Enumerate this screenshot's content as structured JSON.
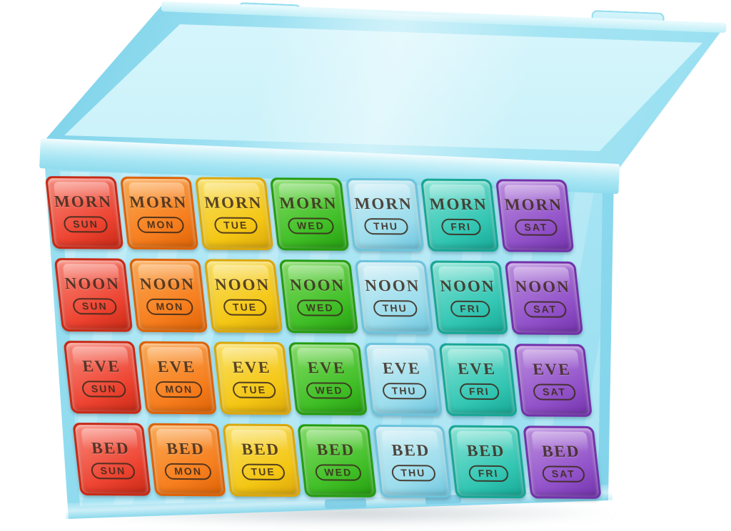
{
  "colors": {
    "background": "#ffffff",
    "caseLight": "#d6f4fb",
    "caseMid": "#b0e9f6",
    "caseEdge": "#8bdaee",
    "caseDeep": "#6fcce6",
    "ink": "#3c2a1d"
  },
  "grid": {
    "periods": [
      "MORN",
      "NOON",
      "EVE",
      "BED"
    ],
    "days": [
      {
        "label": "SUN",
        "base": "#ed4230",
        "light": "#f98a7c",
        "deep": "#c72a16"
      },
      {
        "label": "MON",
        "base": "#f67d1d",
        "light": "#fcab55",
        "deep": "#dd6306"
      },
      {
        "label": "TUE",
        "base": "#f4c614",
        "light": "#fae267",
        "deep": "#dba70a"
      },
      {
        "label": "WED",
        "base": "#3fbe26",
        "light": "#83dd66",
        "deep": "#259c10"
      },
      {
        "label": "THU",
        "base": "#9adcec",
        "light": "#cfeff6",
        "deep": "#6cc4dd"
      },
      {
        "label": "FRI",
        "base": "#31c5b2",
        "light": "#86e4d6",
        "deep": "#17a795"
      },
      {
        "label": "SAT",
        "base": "#9050c8",
        "light": "#bd90e0",
        "deep": "#7232aa"
      }
    ]
  }
}
